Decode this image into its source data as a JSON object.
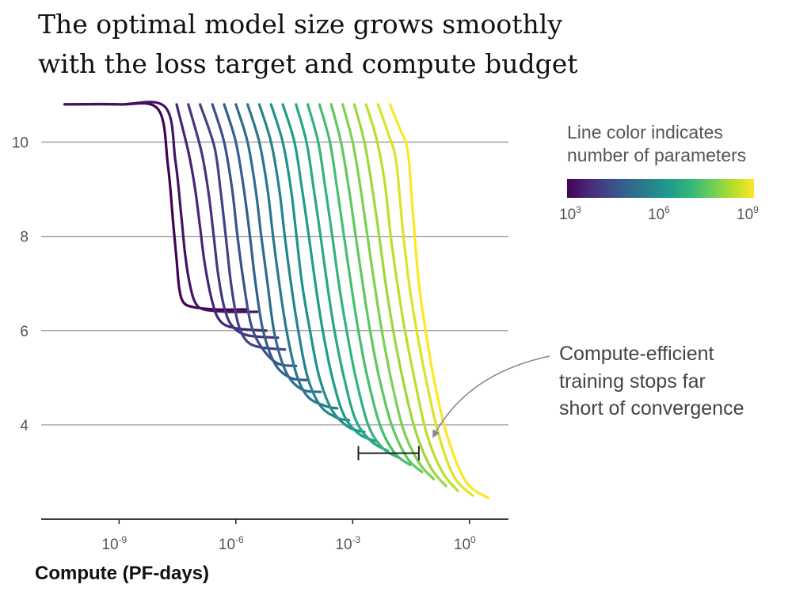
{
  "title": {
    "line1": "The optimal model size grows smoothly",
    "line2": "with the loss target and compute budget"
  },
  "chart_data": {
    "type": "line",
    "title": "The optimal model size grows smoothly with the loss target and compute budget",
    "xlabel": "Compute (PF-days)",
    "ylabel": "",
    "xscale": "log",
    "xlim": [
      "1e-11",
      "1e1"
    ],
    "ylim": [
      2,
      11
    ],
    "x_ticks": [
      {
        "base": "10",
        "exp": "-9",
        "value": "1e-9"
      },
      {
        "base": "10",
        "exp": "-6",
        "value": "1e-6"
      },
      {
        "base": "10",
        "exp": "-3",
        "value": "1e-3"
      },
      {
        "base": "10",
        "exp": "0",
        "value": "1e0"
      }
    ],
    "y_ticks": [
      "4",
      "6",
      "8",
      "10"
    ],
    "grid": "horizontal",
    "colorbar": {
      "title_line1": "Line color indicates",
      "title_line2": "number of parameters",
      "colormap": "viridis",
      "colors": [
        "#440154",
        "#482878",
        "#3e4989",
        "#31688e",
        "#26828e",
        "#1f9e89",
        "#35b779",
        "#6ece58",
        "#b5de2b",
        "#fde725"
      ],
      "ticks": [
        {
          "base": "10",
          "exp": "3"
        },
        {
          "base": "10",
          "exp": "6"
        },
        {
          "base": "10",
          "exp": "9"
        }
      ],
      "range_log10_params": [
        3,
        9
      ]
    },
    "annotation": {
      "lines": [
        "Compute-efficient",
        "training stops far",
        "short of convergence"
      ],
      "bracket_x_range": [
        "1.4e-3",
        "5e-2"
      ],
      "bracket_y": 3.4
    },
    "series": [
      {
        "log10_params": 3.0,
        "x": [
          "4e-11",
          "1e-9",
          "1e-8",
          "1.8e-8",
          "2.5e-8",
          "3e-8",
          "3.5e-8",
          "4.5e-8",
          "8e-8",
          "3e-7",
          "2e-6"
        ],
        "y": [
          10.8,
          10.8,
          10.7,
          9.5,
          8.2,
          7.5,
          6.9,
          6.6,
          6.5,
          6.45,
          6.45
        ]
      },
      {
        "log10_params": 3.3,
        "x": [
          "4e-11",
          "1e-9",
          "1.5e-8",
          "2.8e-8",
          "4e-8",
          "5e-8",
          "6.5e-8",
          "9e-8",
          "1.5e-7",
          "6e-7",
          "3.5e-6"
        ],
        "y": [
          10.8,
          10.8,
          10.75,
          9.6,
          8.4,
          7.6,
          7.0,
          6.6,
          6.45,
          6.4,
          6.4
        ]
      },
      {
        "log10_params": 3.6,
        "x": [
          "3e-8",
          "6e-8",
          "9e-8",
          "1.2e-7",
          "1.6e-7",
          "2.5e-7",
          "4e-7",
          "1e-6",
          "6e-6"
        ],
        "y": [
          10.8,
          9.8,
          9.0,
          8.2,
          7.4,
          6.6,
          6.2,
          6.05,
          6.0
        ]
      },
      {
        "log10_params": 3.9,
        "x": [
          "6e-8",
          "1.3e-7",
          "2e-7",
          "2.7e-7",
          "3.5e-7",
          "5e-7",
          "8e-7",
          "2e-6",
          "1.2e-5"
        ],
        "y": [
          10.8,
          9.8,
          8.9,
          8.0,
          7.2,
          6.5,
          6.1,
          5.9,
          5.85
        ]
      },
      {
        "log10_params": 4.2,
        "x": [
          "1.2e-7",
          "2.8e-7",
          "4e-7",
          "5.5e-7",
          "7.5e-7",
          "1.1e-6",
          "1.8e-6",
          "4e-6",
          "1.8e-5"
        ],
        "y": [
          10.8,
          9.9,
          9.0,
          8.0,
          7.0,
          6.2,
          5.8,
          5.65,
          5.6
        ]
      },
      {
        "log10_params": 4.5,
        "x": [
          "2.5e-7",
          "5e-7",
          "8e-7",
          "1.1e-6",
          "1.6e-6",
          "2.5e-6",
          "5e-6",
          "1.2e-5",
          "3.5e-5"
        ],
        "y": [
          10.8,
          10.0,
          9.0,
          8.0,
          7.0,
          6.1,
          5.6,
          5.3,
          5.25
        ]
      },
      {
        "log10_params": 4.8,
        "x": [
          "5e-7",
          "1e-6",
          "1.6e-6",
          "2.3e-6",
          "3.2e-6",
          "5e-6",
          "1e-5",
          "2.5e-5",
          "7e-5"
        ],
        "y": [
          10.8,
          10.0,
          9.0,
          8.0,
          7.0,
          6.0,
          5.3,
          5.0,
          4.95
        ]
      },
      {
        "log10_params": 5.1,
        "x": [
          "1e-6",
          "2e-6",
          "3.2e-6",
          "4.5e-6",
          "6.5e-6",
          "1e-5",
          "2e-5",
          "5e-5",
          "1.5e-4"
        ],
        "y": [
          10.8,
          10.0,
          9.0,
          8.0,
          7.0,
          5.9,
          5.1,
          4.75,
          4.7
        ]
      },
      {
        "log10_params": 5.4,
        "x": [
          "2e-6",
          "4e-6",
          "6.5e-6",
          "9e-6",
          "1.3e-5",
          "2e-5",
          "3.5e-5",
          "7e-5",
          "2e-4",
          "4e-4"
        ],
        "y": [
          10.8,
          10.0,
          9.0,
          8.0,
          7.0,
          6.0,
          5.1,
          4.6,
          4.4,
          4.35
        ]
      },
      {
        "log10_params": 5.7,
        "x": [
          "4e-6",
          "8e-6",
          "1.3e-5",
          "1.8e-5",
          "2.6e-5",
          "4e-5",
          "7e-5",
          "1.5e-4",
          "4e-4",
          "8e-4"
        ],
        "y": [
          10.8,
          10.0,
          9.0,
          8.0,
          7.0,
          6.0,
          5.0,
          4.4,
          4.15,
          4.1
        ]
      },
      {
        "log10_params": 6.0,
        "x": [
          "8e-6",
          "1.6e-5",
          "2.6e-5",
          "3.6e-5",
          "5e-5",
          "8e-5",
          "1.4e-4",
          "3e-4",
          "8e-4",
          "2e-3"
        ],
        "y": [
          10.8,
          10.0,
          9.0,
          8.0,
          7.0,
          6.0,
          5.0,
          4.3,
          3.95,
          3.85
        ]
      },
      {
        "log10_params": 6.3,
        "x": [
          "1.6e-5",
          "3.2e-5",
          "5e-5",
          "7.5e-5",
          "1.1e-4",
          "1.7e-4",
          "3e-4",
          "6e-4",
          "1.5e-3",
          "4e-3"
        ],
        "y": [
          10.8,
          10.0,
          9.0,
          8.0,
          7.0,
          6.0,
          5.0,
          4.2,
          3.8,
          3.65
        ]
      },
      {
        "log10_params": 6.6,
        "x": [
          "3.5e-5",
          "6.5e-5",
          "1e-4",
          "1.5e-4",
          "2.2e-4",
          "3.4e-4",
          "6e-4",
          "1.2e-3",
          "3e-3",
          "8e-3"
        ],
        "y": [
          10.8,
          10.0,
          9.0,
          8.0,
          7.0,
          6.0,
          5.0,
          4.1,
          3.65,
          3.45
        ]
      },
      {
        "log10_params": 6.9,
        "x": [
          "7e-5",
          "1.3e-4",
          "2e-4",
          "3e-4",
          "4.4e-4",
          "7e-4",
          "1.2e-3",
          "2.5e-3",
          "6e-3",
          "1.6e-2"
        ],
        "y": [
          10.8,
          10.0,
          9.0,
          8.0,
          7.0,
          6.0,
          5.0,
          4.0,
          3.5,
          3.3
        ]
      },
      {
        "log10_params": 7.2,
        "x": [
          "1.4e-4",
          "2.6e-4",
          "4e-4",
          "6e-4",
          "9e-4",
          "1.4e-3",
          "2.4e-3",
          "5e-3",
          "1.2e-2",
          "3e-2"
        ],
        "y": [
          10.8,
          10.0,
          9.0,
          8.0,
          7.0,
          6.0,
          5.0,
          4.0,
          3.4,
          3.15
        ]
      },
      {
        "log10_params": 7.5,
        "x": [
          "2.8e-4",
          "5e-4",
          "8e-4",
          "1.2e-3",
          "1.8e-3",
          "2.8e-3",
          "4.8e-3",
          "1e-2",
          "2.5e-2",
          "6e-2"
        ],
        "y": [
          10.8,
          10.0,
          9.0,
          8.0,
          7.0,
          6.0,
          5.0,
          4.0,
          3.3,
          3.0
        ]
      },
      {
        "log10_params": 7.8,
        "x": [
          "5.5e-4",
          "1e-3",
          "1.6e-3",
          "2.4e-3",
          "3.6e-3",
          "5.6e-3",
          "9.5e-3",
          "2e-2",
          "5e-2",
          "1.2e-1"
        ],
        "y": [
          10.8,
          10.0,
          9.0,
          8.0,
          7.0,
          6.0,
          5.0,
          3.9,
          3.2,
          2.85
        ]
      },
      {
        "log10_params": 8.1,
        "x": [
          "1.1e-3",
          "2e-3",
          "3.2e-3",
          "4.8e-3",
          "7e-3",
          "1.1e-2",
          "1.9e-2",
          "4e-2",
          "1e-1",
          "2.5e-1"
        ],
        "y": [
          10.8,
          10.0,
          9.0,
          8.0,
          7.0,
          6.0,
          5.0,
          3.9,
          3.1,
          2.7
        ]
      },
      {
        "log10_params": 8.4,
        "x": [
          "2.2e-3",
          "4e-3",
          "6.5e-3",
          "9.5e-3",
          "1.4e-2",
          "2.2e-2",
          "3.8e-2",
          "8e-2",
          "2e-1",
          "5e-1"
        ],
        "y": [
          10.8,
          10.1,
          9.2,
          8.0,
          7.0,
          6.0,
          5.0,
          3.8,
          3.0,
          2.6
        ]
      },
      {
        "log10_params": 8.7,
        "x": [
          "4.5e-3",
          "8e-3",
          "1.3e-2",
          "1.9e-2",
          "2.8e-2",
          "4.4e-2",
          "7.5e-2",
          "1.6e-1",
          "4e-1",
          "1.2e0"
        ],
        "y": [
          10.8,
          10.2,
          9.6,
          8.2,
          7.0,
          6.0,
          5.0,
          3.8,
          2.9,
          2.5
        ]
      },
      {
        "log10_params": 9.0,
        "x": [
          "9e-3",
          "1.6e-2",
          "2.6e-2",
          "3.5e-2",
          "5e-2",
          "7.5e-2",
          "1.2e-1",
          "2.6e-1",
          "8e-1",
          "3e0"
        ],
        "y": [
          10.8,
          10.3,
          9.8,
          8.5,
          7.0,
          6.0,
          5.0,
          3.8,
          2.8,
          2.45
        ]
      }
    ]
  }
}
